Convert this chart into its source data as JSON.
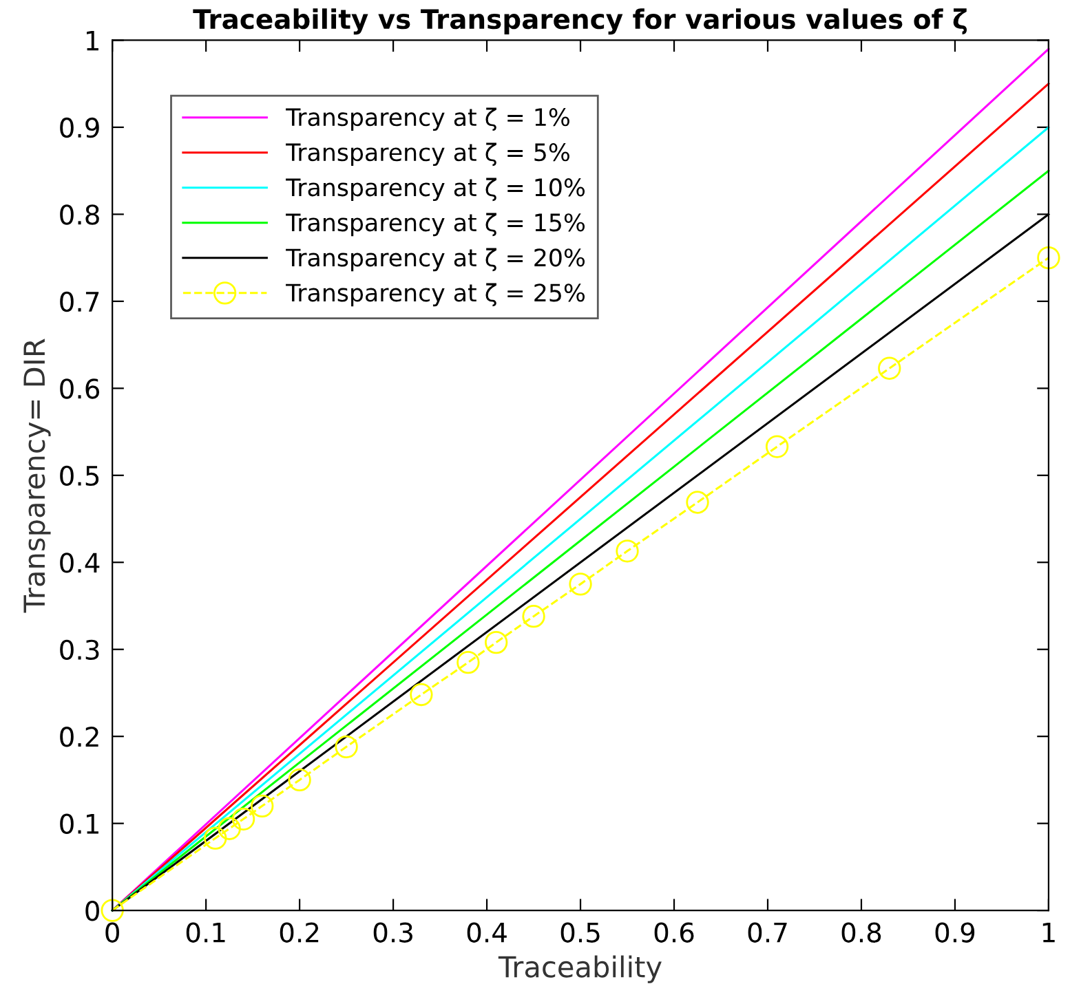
{
  "chart_data": {
    "type": "line",
    "title": "Traceability vs Transparency for various values of ζ",
    "xlabel": "Traceability",
    "ylabel": "Transparency= DIR",
    "xlim": [
      0,
      1
    ],
    "ylim": [
      0,
      1
    ],
    "xticks": [
      0,
      0.1,
      0.2,
      0.3,
      0.4,
      0.5,
      0.6,
      0.7,
      0.8,
      0.9,
      1
    ],
    "yticks": [
      0,
      0.1,
      0.2,
      0.3,
      0.4,
      0.5,
      0.6,
      0.7,
      0.8,
      0.9,
      1
    ],
    "grid": false,
    "legend": "top left",
    "series": [
      {
        "name": "Transparency at ζ = 1%",
        "color": "#ff00ff",
        "x": [
          0,
          1
        ],
        "values": [
          0,
          0.99
        ],
        "marker": "none",
        "line_style": "solid"
      },
      {
        "name": "Transparency at ζ = 5%",
        "color": "#ff0000",
        "x": [
          0,
          1
        ],
        "values": [
          0,
          0.95
        ],
        "marker": "none",
        "line_style": "solid"
      },
      {
        "name": "Transparency at ζ = 10%",
        "color": "#00ffff",
        "x": [
          0,
          1
        ],
        "values": [
          0,
          0.9
        ],
        "marker": "none",
        "line_style": "solid"
      },
      {
        "name": "Transparency at ζ = 15%",
        "color": "#00ff00",
        "x": [
          0,
          1
        ],
        "values": [
          0,
          0.85
        ],
        "marker": "none",
        "line_style": "solid"
      },
      {
        "name": "Transparency at ζ = 20%",
        "color": "#000000",
        "x": [
          0,
          1
        ],
        "values": [
          0,
          0.8
        ],
        "marker": "none",
        "line_style": "solid"
      },
      {
        "name": "Transparency at ζ = 25%",
        "color": "#ffff00",
        "x": [
          0,
          0.11,
          0.125,
          0.14,
          0.16,
          0.2,
          0.25,
          0.33,
          0.38,
          0.41,
          0.45,
          0.5,
          0.55,
          0.625,
          0.71,
          0.83,
          1
        ],
        "values": [
          0,
          0.083,
          0.094,
          0.105,
          0.12,
          0.15,
          0.188,
          0.248,
          0.285,
          0.308,
          0.338,
          0.375,
          0.413,
          0.469,
          0.533,
          0.623,
          0.75
        ],
        "marker": "circle",
        "line_style": "dashed"
      }
    ]
  }
}
